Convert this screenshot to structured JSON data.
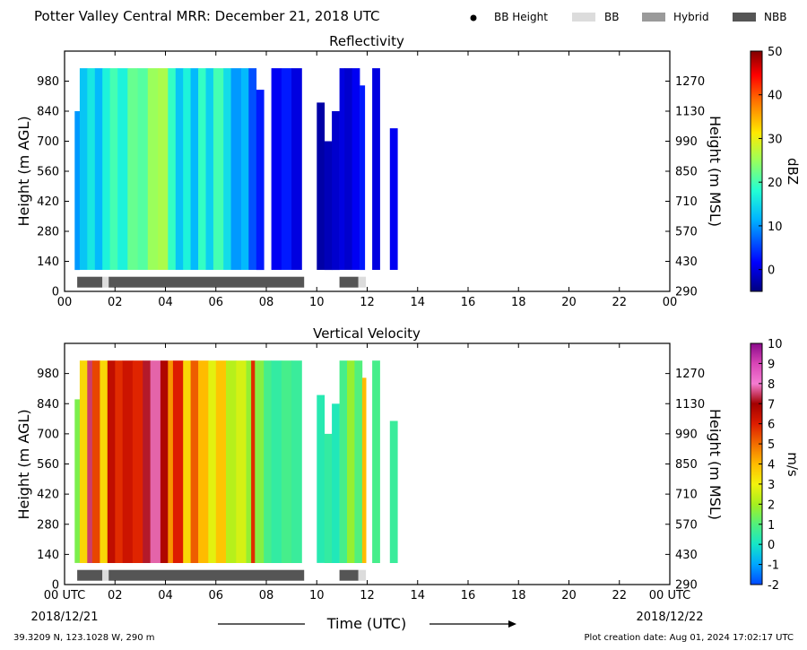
{
  "header": {
    "title": "Potter Valley Central MRR:  December 21, 2018 UTC",
    "legend": [
      {
        "label": "BB Height",
        "kind": "dot",
        "color": "#000000"
      },
      {
        "label": "BB",
        "kind": "swatch",
        "color": "#dcdcdc"
      },
      {
        "label": "Hybrid",
        "kind": "swatch",
        "color": "#9a9a9a"
      },
      {
        "label": "NBB",
        "kind": "swatch",
        "color": "#555555"
      }
    ]
  },
  "footer": {
    "xlabel": "Time (UTC)",
    "location": "39.3209 N, 123.1028 W, 290 m",
    "created": "Plot creation date: Aug 01, 2024 17:02:17 UTC",
    "start_date": "2018/12/21",
    "end_date": "2018/12/22"
  },
  "chart_data": [
    {
      "type": "heatmap",
      "title": "Reflectivity",
      "ylabel": "Height (m AGL)",
      "ylabel_right": "Height (m MSL)",
      "colorbar_label": "dBZ",
      "xlim": [
        0,
        24
      ],
      "ylim": [
        0,
        1120
      ],
      "x_ticks": [
        "00",
        "02",
        "04",
        "06",
        "08",
        "10",
        "12",
        "14",
        "16",
        "18",
        "20",
        "22",
        "00"
      ],
      "y_ticks": [
        0,
        140,
        280,
        420,
        560,
        700,
        840,
        980
      ],
      "y_ticks_right": [
        290,
        430,
        570,
        710,
        850,
        990,
        1130,
        1270
      ],
      "colorbar_range": [
        -5,
        50
      ],
      "colorbar_ticks": [
        0,
        10,
        20,
        30,
        40,
        50
      ],
      "columns": [
        {
          "t0": 0.4,
          "t1": 0.6,
          "value": 10,
          "top": 840
        },
        {
          "t0": 0.6,
          "t1": 0.9,
          "value": 13,
          "top": 1040
        },
        {
          "t0": 0.9,
          "t1": 1.2,
          "value": 16,
          "top": 1040
        },
        {
          "t0": 1.2,
          "t1": 1.5,
          "value": 12,
          "top": 1040
        },
        {
          "t0": 1.5,
          "t1": 1.8,
          "value": 17,
          "top": 1040
        },
        {
          "t0": 1.8,
          "t1": 2.1,
          "value": 20,
          "top": 1040
        },
        {
          "t0": 2.1,
          "t1": 2.5,
          "value": 17,
          "top": 1040
        },
        {
          "t0": 2.5,
          "t1": 2.9,
          "value": 22,
          "top": 1040
        },
        {
          "t0": 2.9,
          "t1": 3.3,
          "value": 21,
          "top": 1040
        },
        {
          "t0": 3.3,
          "t1": 3.7,
          "value": 25,
          "top": 1040
        },
        {
          "t0": 3.7,
          "t1": 4.1,
          "value": 26,
          "top": 1040
        },
        {
          "t0": 4.1,
          "t1": 4.4,
          "value": 19,
          "top": 1040
        },
        {
          "t0": 4.4,
          "t1": 4.7,
          "value": 13,
          "top": 1040
        },
        {
          "t0": 4.7,
          "t1": 5.0,
          "value": 17,
          "top": 1040
        },
        {
          "t0": 5.0,
          "t1": 5.3,
          "value": 12,
          "top": 1040
        },
        {
          "t0": 5.3,
          "t1": 5.6,
          "value": 19,
          "top": 1040
        },
        {
          "t0": 5.6,
          "t1": 5.9,
          "value": 14,
          "top": 1040
        },
        {
          "t0": 5.9,
          "t1": 6.3,
          "value": 20,
          "top": 1040
        },
        {
          "t0": 6.3,
          "t1": 6.6,
          "value": 15,
          "top": 1040
        },
        {
          "t0": 6.6,
          "t1": 7.0,
          "value": 10,
          "top": 1040
        },
        {
          "t0": 7.0,
          "t1": 7.3,
          "value": 12,
          "top": 1040
        },
        {
          "t0": 7.3,
          "t1": 7.6,
          "value": 6,
          "top": 1040
        },
        {
          "t0": 7.6,
          "t1": 7.9,
          "value": 3,
          "top": 940
        },
        {
          "t0": 8.2,
          "t1": 8.6,
          "value": 1,
          "top": 1040
        },
        {
          "t0": 8.6,
          "t1": 9.0,
          "value": 3,
          "top": 1040
        },
        {
          "t0": 9.0,
          "t1": 9.4,
          "value": 0,
          "top": 1040
        },
        {
          "t0": 10.0,
          "t1": 10.3,
          "value": -3,
          "top": 880
        },
        {
          "t0": 10.3,
          "t1": 10.6,
          "value": -2,
          "top": 700
        },
        {
          "t0": 10.6,
          "t1": 10.9,
          "value": -1,
          "top": 840
        },
        {
          "t0": 10.9,
          "t1": 11.1,
          "value": 0,
          "top": 1040
        },
        {
          "t0": 11.1,
          "t1": 11.4,
          "value": -1,
          "top": 1040
        },
        {
          "t0": 11.4,
          "t1": 11.7,
          "value": 1,
          "top": 1040
        },
        {
          "t0": 11.7,
          "t1": 11.9,
          "value": 3,
          "top": 960
        },
        {
          "t0": 12.2,
          "t1": 12.5,
          "value": 0,
          "top": 1040
        },
        {
          "t0": 12.9,
          "t1": 13.2,
          "value": 1,
          "top": 760
        }
      ],
      "bb_bar": [
        {
          "t0": 0.5,
          "t1": 1.5,
          "class": "NBB"
        },
        {
          "t0": 1.5,
          "t1": 1.75,
          "class": "BB"
        },
        {
          "t0": 1.75,
          "t1": 9.5,
          "class": "NBB"
        },
        {
          "t0": 10.9,
          "t1": 11.65,
          "class": "NBB"
        },
        {
          "t0": 11.65,
          "t1": 11.95,
          "class": "BB"
        }
      ]
    },
    {
      "type": "heatmap",
      "title": "Vertical Velocity",
      "ylabel": "Height (m AGL)",
      "ylabel_right": "Height (m MSL)",
      "colorbar_label": "m/s",
      "xlim": [
        0,
        24
      ],
      "ylim": [
        0,
        1120
      ],
      "x_ticks": [
        "00 UTC",
        "02",
        "04",
        "06",
        "08",
        "10",
        "12",
        "14",
        "16",
        "18",
        "20",
        "22",
        "00 UTC"
      ],
      "y_ticks": [
        0,
        140,
        280,
        420,
        560,
        700,
        840,
        980
      ],
      "y_ticks_right": [
        290,
        430,
        570,
        710,
        850,
        990,
        1130,
        1270
      ],
      "colorbar_range": [
        -2,
        10
      ],
      "colorbar_ticks": [
        -2,
        -1,
        0,
        1,
        2,
        3,
        4,
        5,
        6,
        7,
        8,
        9,
        10
      ],
      "columns": [
        {
          "t0": 0.4,
          "t1": 0.6,
          "value": 1.5,
          "top": 860
        },
        {
          "t0": 0.6,
          "t1": 0.9,
          "value": 3.5,
          "top": 1040
        },
        {
          "t0": 0.9,
          "t1": 1.1,
          "value": 7.5,
          "top": 1040
        },
        {
          "t0": 1.1,
          "t1": 1.4,
          "value": 5.5,
          "top": 1040
        },
        {
          "t0": 1.4,
          "t1": 1.7,
          "value": 3.5,
          "top": 1040
        },
        {
          "t0": 1.7,
          "t1": 2.0,
          "value": 6.5,
          "top": 1040
        },
        {
          "t0": 2.0,
          "t1": 2.3,
          "value": 5.8,
          "top": 1040
        },
        {
          "t0": 2.3,
          "t1": 2.7,
          "value": 6.3,
          "top": 1040
        },
        {
          "t0": 2.7,
          "t1": 3.1,
          "value": 5.9,
          "top": 1040
        },
        {
          "t0": 3.1,
          "t1": 3.4,
          "value": 7.2,
          "top": 1040
        },
        {
          "t0": 3.4,
          "t1": 3.8,
          "value": 7.8,
          "top": 1040
        },
        {
          "t0": 3.8,
          "t1": 4.1,
          "value": 6.8,
          "top": 1040
        },
        {
          "t0": 4.1,
          "t1": 4.3,
          "value": 4.5,
          "top": 1040
        },
        {
          "t0": 4.3,
          "t1": 4.7,
          "value": 6.0,
          "top": 1040
        },
        {
          "t0": 4.7,
          "t1": 5.0,
          "value": 3.5,
          "top": 1040
        },
        {
          "t0": 5.0,
          "t1": 5.3,
          "value": 5.2,
          "top": 1040
        },
        {
          "t0": 5.3,
          "t1": 5.7,
          "value": 4.0,
          "top": 1040
        },
        {
          "t0": 5.7,
          "t1": 6.0,
          "value": 2.8,
          "top": 1040
        },
        {
          "t0": 6.0,
          "t1": 6.4,
          "value": 3.8,
          "top": 1040
        },
        {
          "t0": 6.4,
          "t1": 6.8,
          "value": 2.2,
          "top": 1040
        },
        {
          "t0": 6.8,
          "t1": 7.2,
          "value": 2.6,
          "top": 1040
        },
        {
          "t0": 7.2,
          "t1": 7.4,
          "value": 1.8,
          "top": 1040
        },
        {
          "t0": 7.4,
          "t1": 7.55,
          "value": 5.8,
          "top": 1040
        },
        {
          "t0": 7.55,
          "t1": 7.9,
          "value": 1.6,
          "top": 1040
        },
        {
          "t0": 7.9,
          "t1": 8.2,
          "value": 0.8,
          "top": 1040
        },
        {
          "t0": 8.2,
          "t1": 8.6,
          "value": 0.5,
          "top": 1040
        },
        {
          "t0": 8.6,
          "t1": 9.0,
          "value": 0.8,
          "top": 1040
        },
        {
          "t0": 9.0,
          "t1": 9.4,
          "value": 0.6,
          "top": 1040
        },
        {
          "t0": 10.0,
          "t1": 10.3,
          "value": 0.3,
          "top": 880
        },
        {
          "t0": 10.3,
          "t1": 10.6,
          "value": 0.5,
          "top": 700
        },
        {
          "t0": 10.6,
          "t1": 10.9,
          "value": 0.2,
          "top": 840
        },
        {
          "t0": 10.9,
          "t1": 11.2,
          "value": 0.8,
          "top": 1040
        },
        {
          "t0": 11.2,
          "t1": 11.5,
          "value": 1.8,
          "top": 1040
        },
        {
          "t0": 11.5,
          "t1": 11.8,
          "value": 1.0,
          "top": 1040
        },
        {
          "t0": 11.8,
          "t1": 11.95,
          "value": 4.0,
          "top": 960
        },
        {
          "t0": 12.2,
          "t1": 12.5,
          "value": 0.8,
          "top": 1040
        },
        {
          "t0": 12.9,
          "t1": 13.2,
          "value": 0.6,
          "top": 760
        }
      ],
      "bb_bar": [
        {
          "t0": 0.5,
          "t1": 1.5,
          "class": "NBB"
        },
        {
          "t0": 1.5,
          "t1": 1.75,
          "class": "BB"
        },
        {
          "t0": 1.75,
          "t1": 9.5,
          "class": "NBB"
        },
        {
          "t0": 10.9,
          "t1": 11.65,
          "class": "NBB"
        },
        {
          "t0": 11.65,
          "t1": 11.95,
          "class": "BB"
        }
      ]
    }
  ]
}
